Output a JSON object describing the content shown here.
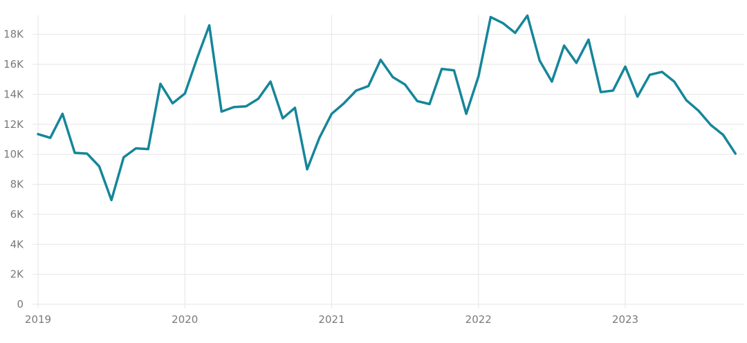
{
  "chart_data": {
    "type": "line",
    "title": "",
    "xlabel": "",
    "ylabel": "",
    "ylim": [
      0,
      19000
    ],
    "grid": true,
    "x_ticks": [
      "2019",
      "2020",
      "2021",
      "2022",
      "2023"
    ],
    "y_ticks": [
      "0",
      "2K",
      "4K",
      "6K",
      "8K",
      "10K",
      "12K",
      "14K",
      "16K",
      "18K"
    ],
    "y_tick_values": [
      0,
      2000,
      4000,
      6000,
      8000,
      10000,
      12000,
      14000,
      16000,
      18000
    ],
    "x": [
      "2019-01",
      "2019-02",
      "2019-03",
      "2019-04",
      "2019-05",
      "2019-06",
      "2019-07",
      "2019-08",
      "2019-09",
      "2019-10",
      "2019-11",
      "2019-12",
      "2020-01",
      "2020-02",
      "2020-03",
      "2020-04",
      "2020-05",
      "2020-06",
      "2020-07",
      "2020-08",
      "2020-09",
      "2020-10",
      "2020-11",
      "2020-12",
      "2021-01",
      "2021-02",
      "2021-03",
      "2021-04",
      "2021-05",
      "2021-06",
      "2021-07",
      "2021-08",
      "2021-09",
      "2021-10",
      "2021-11",
      "2021-12",
      "2022-01",
      "2022-02",
      "2022-03",
      "2022-04",
      "2022-05",
      "2022-06",
      "2022-07",
      "2022-08",
      "2022-09",
      "2022-10",
      "2022-11",
      "2022-12",
      "2023-01",
      "2023-02",
      "2023-03",
      "2023-04",
      "2023-05",
      "2023-06",
      "2023-07",
      "2023-08",
      "2023-09",
      "2023-10"
    ],
    "series": [
      {
        "color": "#15869a",
        "values": [
          11350,
          11100,
          12700,
          10100,
          10050,
          9200,
          6950,
          9800,
          10400,
          10350,
          14700,
          13400,
          14050,
          16400,
          18600,
          12850,
          13150,
          13200,
          13700,
          14850,
          12400,
          13100,
          9000,
          11100,
          12700,
          13400,
          14250,
          14550,
          16300,
          15150,
          14650,
          13550,
          13350,
          15700,
          15600,
          12700,
          15200,
          19150,
          18750,
          18100,
          19250,
          16250,
          14850,
          17250,
          16100,
          17650,
          14150,
          14250,
          15850,
          13850,
          15300,
          15500,
          14850,
          13600,
          12900,
          11950,
          11300,
          10050
        ]
      }
    ]
  }
}
